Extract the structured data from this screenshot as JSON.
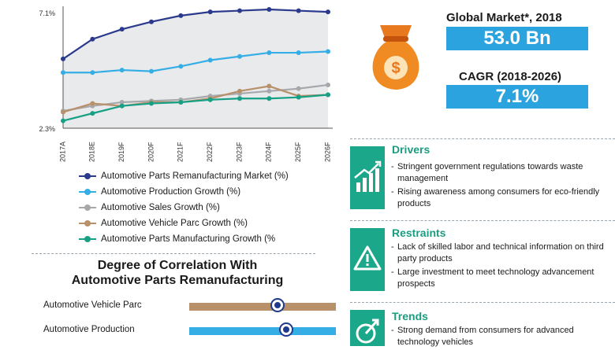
{
  "chart_data": {
    "type": "line",
    "categories": [
      "2017A",
      "2018E",
      "2019F",
      "2020F",
      "2021F",
      "2022F",
      "2023F",
      "2024F",
      "2025F",
      "2026F"
    ],
    "y_axis": {
      "top_label": "7.1%",
      "bottom_label": "2.3%",
      "ylim": [
        2.3,
        7.1
      ]
    },
    "grid": false,
    "legend_placement": "bottom",
    "series": [
      {
        "name": "Automotive Parts Remanufacturing Market  (%)",
        "color": "#2b3a8c",
        "values": [
          5.1,
          5.9,
          6.3,
          6.6,
          6.85,
          7.0,
          7.05,
          7.1,
          7.05,
          7.0
        ]
      },
      {
        "name": "Automotive Production Growth (%)",
        "color": "#35aee6",
        "values": [
          4.55,
          4.55,
          4.65,
          4.6,
          4.8,
          5.05,
          5.2,
          5.35,
          5.35,
          5.4
        ]
      },
      {
        "name": "Automotive Sales Growth (%)",
        "color": "#a6a8ab",
        "values": [
          3.0,
          3.2,
          3.35,
          3.4,
          3.45,
          3.6,
          3.7,
          3.8,
          3.9,
          4.05
        ]
      },
      {
        "name": "Automotive Vehicle Parc Growth (%)",
        "color": "#b8916a",
        "values": [
          2.95,
          3.3,
          3.2,
          3.35,
          3.35,
          3.5,
          3.8,
          4.0,
          3.6,
          3.65
        ]
      },
      {
        "name": "Automotive Parts Manufacturing Growth (%",
        "color": "#16a085",
        "values": [
          2.6,
          2.9,
          3.2,
          3.3,
          3.35,
          3.45,
          3.5,
          3.5,
          3.55,
          3.65
        ]
      }
    ]
  },
  "kpis": {
    "global_market_label": "Global Market*, 2018",
    "global_market_value": "53.0 Bn",
    "cagr_label": "CAGR (2018-2026)",
    "cagr_value": "7.1%"
  },
  "correlation": {
    "title_line1": "Degree of Correlation With",
    "title_line2": "Automotive Parts Remanufacturing",
    "rows": [
      {
        "label": "Automotive Vehicle Parc",
        "level": 0.6,
        "color": "#b8916a"
      },
      {
        "label": "Automotive Production",
        "level": 0.66,
        "color": "#35aee6"
      }
    ]
  },
  "panels": {
    "drivers": {
      "title": "Drivers",
      "icon": "growth-chart-icon",
      "items": [
        "Stringent government regulations towards waste management",
        "Rising awareness among consumers for eco-friendly products"
      ]
    },
    "restraints": {
      "title": "Restraints",
      "icon": "warning-icon",
      "items": [
        "Lack of skilled labor and technical information on third party products",
        "Large investment to meet technology advancement prospects"
      ]
    },
    "trends": {
      "title": "Trends",
      "icon": "trend-arrow-icon",
      "items": [
        "Strong demand from consumers for advanced technology vehicles"
      ]
    }
  },
  "colors": {
    "accent_blue": "#2aa3df",
    "panel_green": "#1ba88a",
    "plot_background": "#e9eaec"
  }
}
